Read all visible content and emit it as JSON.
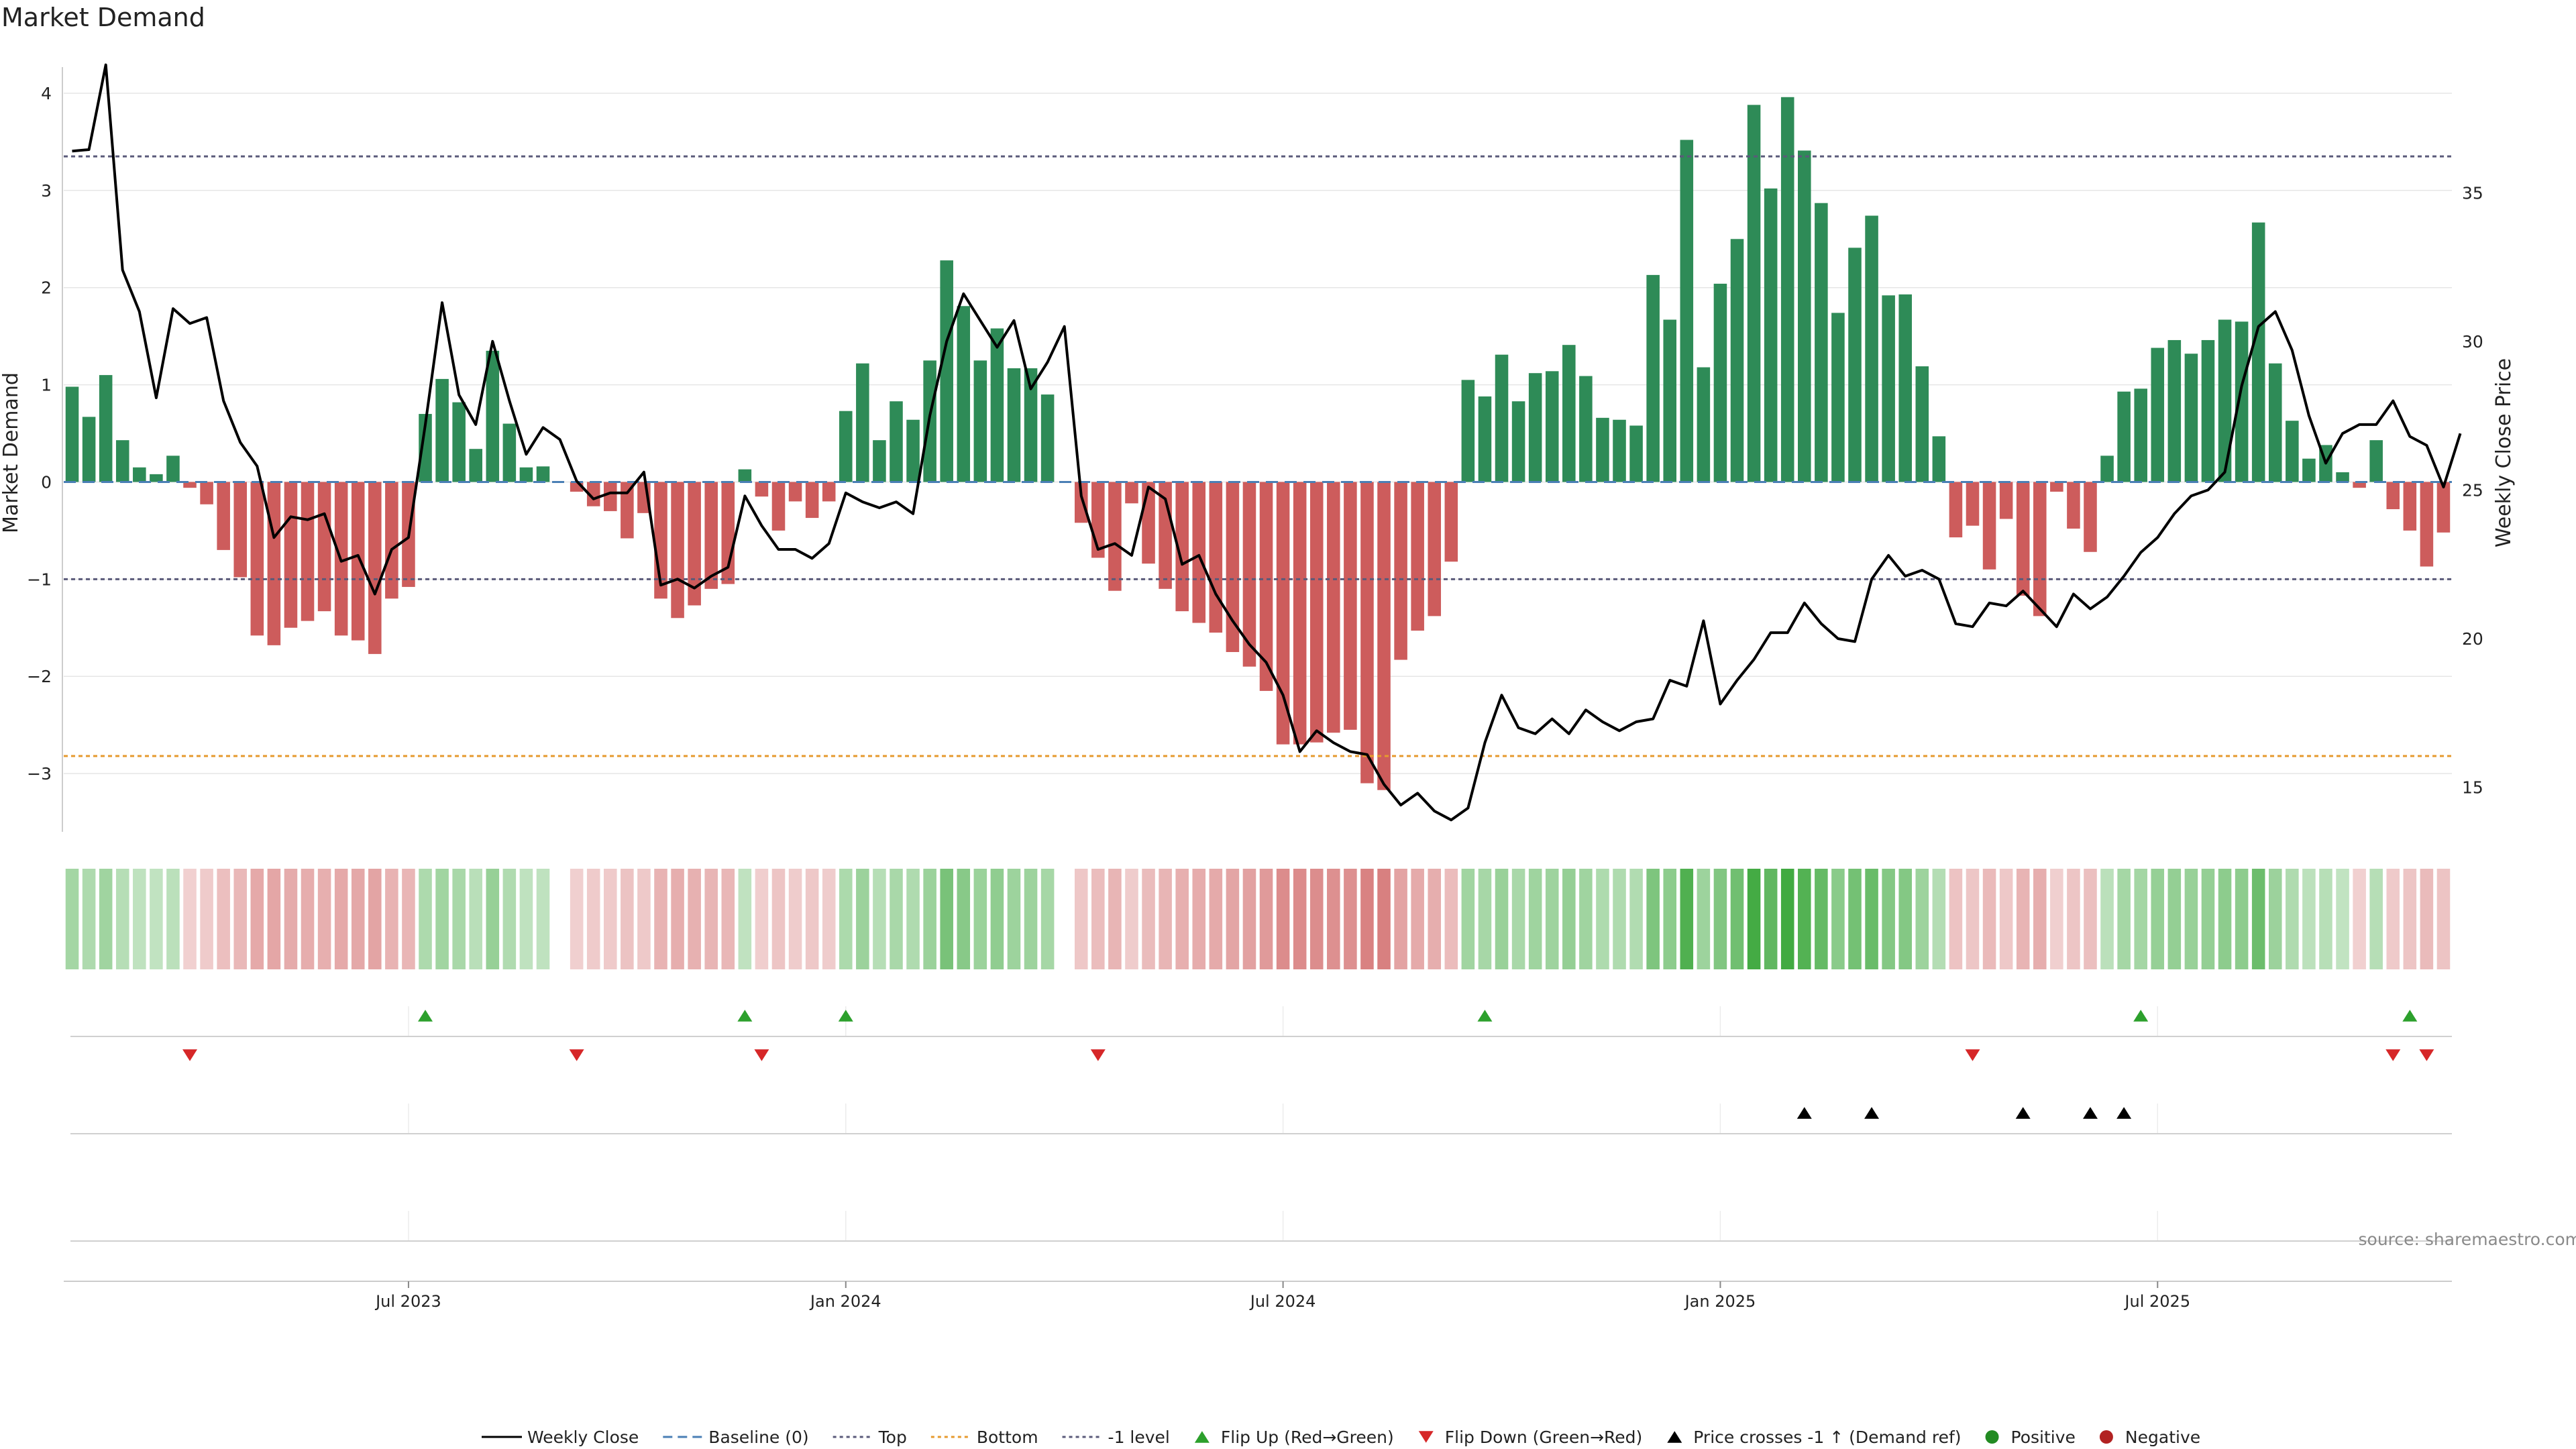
{
  "title": "Market Demand",
  "source_note": "source: sharemaestro.com",
  "chart_data": {
    "type": "bar",
    "title": "Market Demand",
    "ylabel_left": "Market Demand",
    "ylabel_right": "Weekly Close Price",
    "ylim_left": [
      -3.6,
      4.2
    ],
    "ylim_right": [
      13.5,
      39.0
    ],
    "left_ticks": [
      4,
      3,
      2,
      1,
      0,
      -1,
      -2,
      -3
    ],
    "left_tick_labels": [
      "4",
      "3",
      "2",
      "1",
      "0",
      "−1",
      "−2",
      "−3"
    ],
    "right_ticks": [
      35,
      30,
      25,
      20,
      15
    ],
    "right_tick_labels": [
      "35",
      "30",
      "25",
      "20",
      "15"
    ],
    "reference_lines": {
      "top": 3.35,
      "bottom": -2.82,
      "minus_one": -1.0,
      "baseline": 0
    },
    "x_tick_labels": [
      "Jul 2023",
      "Jan 2024",
      "Jul 2024",
      "Jan 2025",
      "Jul 2025"
    ],
    "x_tick_index": [
      20,
      46,
      72,
      98,
      124
    ],
    "demand": [
      0.98,
      0.67,
      1.1,
      0.43,
      0.15,
      0.08,
      0.27,
      -0.06,
      -0.23,
      -0.7,
      -0.98,
      -1.58,
      -1.68,
      -1.5,
      -1.43,
      -1.33,
      -1.58,
      -1.63,
      -1.77,
      -1.2,
      -1.08,
      0.7,
      1.06,
      0.82,
      0.34,
      1.35,
      0.6,
      0.15,
      0.16,
      0,
      -0.1,
      -0.25,
      -0.3,
      -0.58,
      -0.32,
      -1.2,
      -1.4,
      -1.27,
      -1.1,
      -1.05,
      0.13,
      -0.15,
      -0.5,
      -0.2,
      -0.37,
      -0.2,
      0.73,
      1.22,
      0.43,
      0.83,
      0.64,
      1.25,
      2.28,
      1.81,
      1.25,
      1.58,
      1.17,
      1.17,
      0.9,
      0,
      -0.42,
      -0.78,
      -1.12,
      -0.22,
      -0.84,
      -1.1,
      -1.33,
      -1.45,
      -1.55,
      -1.75,
      -1.9,
      -2.15,
      -2.7,
      -2.7,
      -2.68,
      -2.58,
      -2.55,
      -3.1,
      -3.17,
      -1.83,
      -1.53,
      -1.38,
      -0.82,
      1.05,
      0.88,
      1.31,
      0.83,
      1.12,
      1.14,
      1.41,
      1.09,
      0.66,
      0.64,
      0.58,
      2.13,
      1.67,
      3.52,
      1.18,
      2.04,
      2.5,
      3.88,
      3.02,
      3.96,
      3.41,
      2.87,
      1.74,
      2.41,
      2.74,
      1.92,
      1.93,
      1.19,
      0.47,
      -0.57,
      -0.45,
      -0.9,
      -0.38,
      -1.17,
      -1.38,
      -0.1,
      -0.48,
      -0.72,
      0.27,
      0.93,
      0.96,
      1.38,
      1.46,
      1.32,
      1.46,
      1.67,
      1.65,
      2.67,
      1.22,
      0.63,
      0.24,
      0.38,
      0.1,
      -0.06,
      0.43,
      -0.28,
      -0.5,
      -0.87,
      -0.52
    ],
    "weekly_close": [
      36.4,
      36.45,
      39.3,
      32.4,
      31.0,
      28.1,
      31.1,
      30.6,
      30.8,
      28.0,
      26.6,
      25.8,
      23.4,
      24.1,
      24.0,
      24.2,
      22.6,
      22.8,
      21.5,
      23.0,
      23.4,
      27.2,
      31.3,
      28.2,
      27.2,
      30.0,
      28.0,
      26.2,
      27.1,
      26.7,
      25.3,
      24.7,
      24.9,
      24.9,
      25.6,
      21.8,
      22.0,
      21.7,
      22.1,
      22.4,
      24.8,
      23.8,
      23.0,
      23.0,
      22.7,
      23.2,
      24.9,
      24.6,
      24.4,
      24.6,
      24.2,
      27.5,
      30.0,
      31.6,
      30.7,
      29.8,
      30.7,
      28.4,
      29.3,
      30.5,
      24.8,
      23.0,
      23.2,
      22.8,
      25.1,
      24.7,
      22.5,
      22.8,
      21.5,
      20.6,
      19.8,
      19.2,
      18.1,
      16.2,
      16.9,
      16.5,
      16.2,
      16.1,
      15.1,
      14.4,
      14.8,
      14.2,
      13.9,
      14.3,
      16.5,
      18.1,
      17.0,
      16.8,
      17.3,
      16.8,
      17.6,
      17.2,
      16.9,
      17.2,
      17.3,
      18.6,
      18.4,
      20.6,
      17.8,
      18.6,
      19.3,
      20.2,
      20.2,
      21.2,
      20.5,
      20.0,
      19.9,
      22.0,
      22.8,
      22.1,
      22.3,
      22.0,
      20.5,
      20.4,
      21.2,
      21.1,
      21.6,
      21.0,
      20.4,
      21.5,
      21.0,
      21.4,
      22.1,
      22.9,
      23.4,
      24.2,
      24.8,
      25.0,
      25.6,
      28.5,
      30.5,
      31.0,
      29.7,
      27.5,
      25.9,
      26.9,
      27.2,
      27.2,
      28.0,
      26.8,
      26.5,
      25.1,
      26.9
    ],
    "flip_up_index": [
      21,
      40,
      46,
      84,
      123,
      139
    ],
    "flip_down_index": [
      7,
      30,
      41,
      61,
      113,
      138,
      140
    ],
    "price_cross_index": [
      103,
      107,
      116,
      120,
      122
    ],
    "legend": [
      "Weekly Close",
      "Baseline (0)",
      "Top",
      "Bottom",
      "-1 level",
      "Flip Up (Red→Green)",
      "Flip Down (Green→Red)",
      "Price crosses -1 ↑ (Demand ref)",
      "Positive",
      "Negative"
    ],
    "colors": {
      "positive": "#2e8b57",
      "negative": "#cd5c5c",
      "close_line": "#000000",
      "baseline": "#4a7fb5",
      "top": "#5a5a7a",
      "bottom": "#e69a2e",
      "minus_one": "#5a5a7a",
      "flip_up": "#2ca02c",
      "flip_down": "#d62728",
      "cross": "#000000",
      "legend_positive": "#228b22",
      "legend_negative": "#b22222"
    }
  }
}
